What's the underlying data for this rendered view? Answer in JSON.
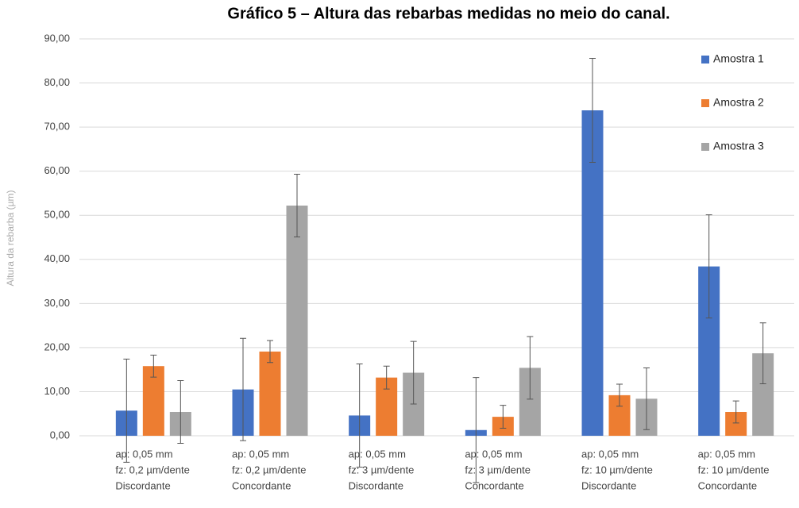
{
  "chart_data": {
    "type": "bar",
    "title": "Gráfico 5 – Altura das rebarbas medidas no meio do canal.",
    "y_label": "Altura da rebarba (µm)",
    "categories": [
      [
        "ap: 0,05 mm",
        "fz: 0,2 µm/dente",
        "Discordante"
      ],
      [
        "ap: 0,05 mm",
        "fz: 0,2 µm/dente",
        "Concordante"
      ],
      [
        "ap: 0,05 mm",
        "fz: 3 µm/dente",
        "Discordante"
      ],
      [
        "ap: 0,05 mm",
        "fz: 3 µm/dente",
        "Concordante"
      ],
      [
        "ap: 0,05 mm",
        "fz: 10 µm/dente",
        "Discordante"
      ],
      [
        "ap: 0,05 mm",
        "fz: 10 µm/dente",
        "Concordante"
      ]
    ],
    "series": [
      {
        "name": "Amostra 1",
        "color": "#4472c4",
        "values": [
          5.7,
          10.5,
          4.6,
          1.3,
          73.8,
          38.4
        ],
        "errors": [
          11.7,
          11.6,
          11.7,
          11.9,
          11.8,
          11.7
        ]
      },
      {
        "name": "Amostra 2",
        "color": "#ed7d31",
        "values": [
          15.8,
          19.1,
          13.2,
          4.3,
          9.2,
          5.4
        ],
        "errors": [
          2.5,
          2.5,
          2.6,
          2.6,
          2.5,
          2.5
        ]
      },
      {
        "name": "Amostra 3",
        "color": "#a5a5a5",
        "values": [
          5.4,
          52.2,
          14.3,
          15.4,
          8.4,
          18.7
        ],
        "errors": [
          7.1,
          7.1,
          7.1,
          7.1,
          7.0,
          6.9
        ]
      }
    ],
    "ylim": [
      0,
      90
    ],
    "yticks": [
      {
        "value": 0,
        "label": "0,00"
      },
      {
        "value": 10,
        "label": "10,00"
      },
      {
        "value": 20,
        "label": "20,00"
      },
      {
        "value": 30,
        "label": "30,00"
      },
      {
        "value": 40,
        "label": "40,00"
      },
      {
        "value": 50,
        "label": "50,00"
      },
      {
        "value": 60,
        "label": "60,00"
      },
      {
        "value": 70,
        "label": "70,00"
      },
      {
        "value": 80,
        "label": "80,00"
      },
      {
        "value": 90,
        "label": "90,00"
      }
    ],
    "grid": true,
    "legend": "top-right"
  }
}
